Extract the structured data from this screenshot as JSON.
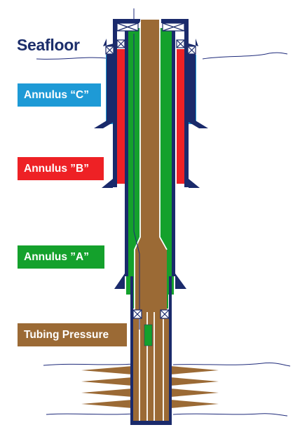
{
  "title": "Seafloor",
  "labels": {
    "annulus_c": "Annulus “C”",
    "annulus_b": "Annulus ”B”",
    "annulus_a": "Annulus ”A”",
    "tubing_pressure": "Tubing Pressure"
  },
  "colors": {
    "annulus_c": "#1e9ad6",
    "annulus_b": "#ee2125",
    "annulus_a": "#14a12c",
    "tubing": "#9b6a35",
    "casing": "#1a2a6b",
    "wire": "#1e2a7a"
  }
}
